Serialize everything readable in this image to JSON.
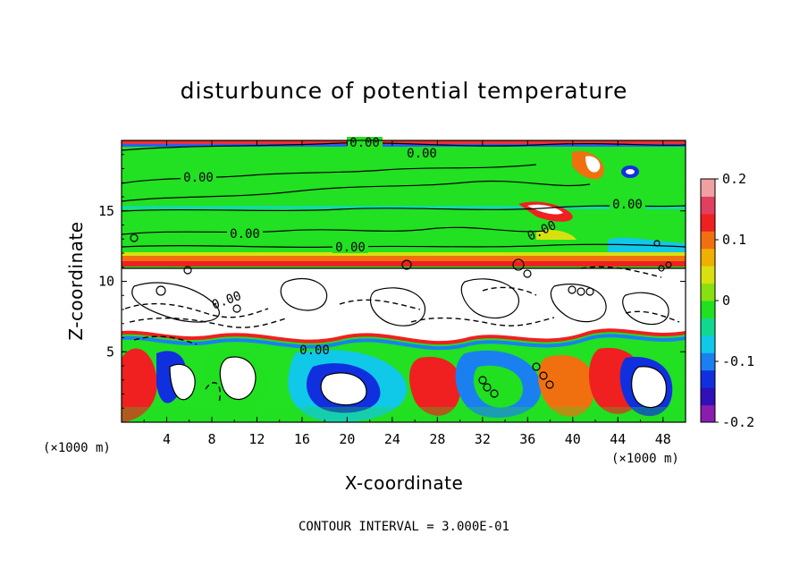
{
  "chart_data": {
    "type": "heatmap",
    "title": "disturbunce of potential temperature",
    "xlabel": "X-coordinate",
    "ylabel": "Z-coordinate",
    "x_unit": "(×1000 m)",
    "z_unit": "(×1000 m)",
    "xlim": [
      0,
      50
    ],
    "ylim": [
      0,
      20
    ],
    "x_ticks": [
      "4",
      "8",
      "12",
      "16",
      "20",
      "24",
      "28",
      "32",
      "36",
      "40",
      "44",
      "48"
    ],
    "y_ticks": [
      "5",
      "10",
      "15"
    ],
    "colorbar": {
      "range": [
        -0.2,
        0.2
      ],
      "tick_labels": [
        "0.2",
        "0.1",
        "0",
        "-0.1",
        "-0.2"
      ],
      "colors": [
        "#8a1cb0",
        "#3010b8",
        "#1030e0",
        "#1a80f0",
        "#10c8e8",
        "#10d890",
        "#20e020",
        "#88e010",
        "#d8e010",
        "#f0b000",
        "#f07010",
        "#f02020",
        "#e04060",
        "#f0a0a0"
      ]
    },
    "contour_labels": [
      "0.00",
      "0.00",
      "0.00",
      "0.00",
      "0.00",
      "0.00",
      "0.00",
      "0.00",
      "0.00"
    ],
    "footnote": "CONTOUR INTERVAL = 3.000E-01"
  }
}
